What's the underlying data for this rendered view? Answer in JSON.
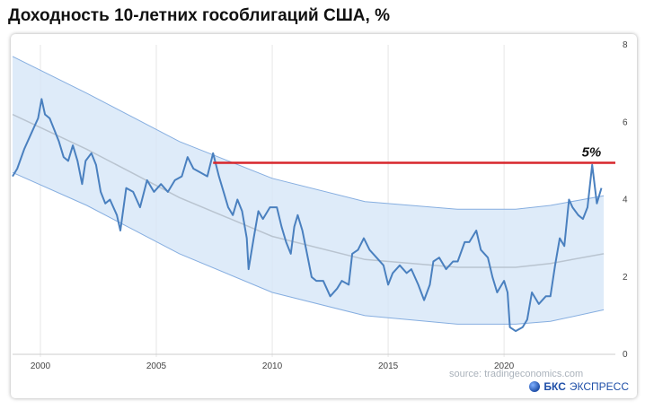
{
  "title": "Доходность 10-летних гособлигаций США, %",
  "source": "source: tradingeconomics.com",
  "brand": {
    "name": "БКС",
    "suffix": "ЭКСПРЕСС",
    "icon": "bcs-logo-icon"
  },
  "colors": {
    "line": "#4a80bf",
    "band_fill": "#d6e6f8",
    "band_edge": "#86aee0",
    "trend": "#b9c4d0",
    "threshold": "#d7262b",
    "grid": "#e6e6e6"
  },
  "chart_data": {
    "type": "line",
    "title": "Доходность 10-летних гособлигаций США, %",
    "xlabel": "",
    "ylabel": "",
    "xlim": [
      1998.8,
      2024.8
    ],
    "ylim": [
      0,
      8
    ],
    "x_ticks": [
      "2000",
      "2005",
      "2010",
      "2015",
      "2020"
    ],
    "y_ticks": [
      "0",
      "2",
      "4",
      "6",
      "8"
    ],
    "y_axis_side": "right",
    "grid": "vertical",
    "series": [
      {
        "x": [
          1998.8,
          1999.0,
          1999.3,
          1999.6,
          1999.9,
          2000.05,
          2000.2,
          2000.4,
          2000.6,
          2000.8,
          2001.0,
          2001.2,
          2001.4,
          2001.6,
          2001.8,
          2001.95,
          2002.2,
          2002.4,
          2002.6,
          2002.8,
          2003.0,
          2003.3,
          2003.45,
          2003.7,
          2004.0,
          2004.3,
          2004.6,
          2004.9,
          2005.2,
          2005.5,
          2005.8,
          2006.1,
          2006.35,
          2006.6,
          2006.9,
          2007.2,
          2007.45,
          2007.7,
          2007.9,
          2008.1,
          2008.3,
          2008.5,
          2008.7,
          2008.9,
          2008.98,
          2009.2,
          2009.4,
          2009.6,
          2009.9,
          2010.2,
          2010.4,
          2010.6,
          2010.8,
          2010.95,
          2011.1,
          2011.3,
          2011.5,
          2011.7,
          2011.9,
          2012.2,
          2012.5,
          2012.8,
          2013.0,
          2013.3,
          2013.45,
          2013.7,
          2013.95,
          2014.2,
          2014.5,
          2014.8,
          2015.0,
          2015.2,
          2015.5,
          2015.8,
          2016.0,
          2016.3,
          2016.55,
          2016.8,
          2016.95,
          2017.2,
          2017.5,
          2017.8,
          2018.0,
          2018.3,
          2018.5,
          2018.8,
          2019.0,
          2019.3,
          2019.5,
          2019.7,
          2019.9,
          2020.0,
          2020.15,
          2020.25,
          2020.5,
          2020.8,
          2021.0,
          2021.2,
          2021.5,
          2021.8,
          2022.0,
          2022.2,
          2022.4,
          2022.6,
          2022.8,
          2022.95,
          2023.2,
          2023.4,
          2023.6,
          2023.8,
          2024.0,
          2024.2
        ],
        "values": [
          4.6,
          4.8,
          5.3,
          5.7,
          6.1,
          6.6,
          6.2,
          6.1,
          5.8,
          5.5,
          5.1,
          5.0,
          5.4,
          5.0,
          4.4,
          5.0,
          5.2,
          4.9,
          4.2,
          3.9,
          4.0,
          3.6,
          3.2,
          4.3,
          4.2,
          3.8,
          4.5,
          4.2,
          4.4,
          4.2,
          4.5,
          4.6,
          5.1,
          4.8,
          4.7,
          4.6,
          5.2,
          4.6,
          4.2,
          3.8,
          3.6,
          4.0,
          3.7,
          3.0,
          2.2,
          3.0,
          3.7,
          3.5,
          3.8,
          3.8,
          3.3,
          2.9,
          2.6,
          3.3,
          3.6,
          3.2,
          2.6,
          2.0,
          1.9,
          1.9,
          1.5,
          1.7,
          1.9,
          1.8,
          2.6,
          2.7,
          3.0,
          2.7,
          2.5,
          2.3,
          1.8,
          2.1,
          2.3,
          2.1,
          2.2,
          1.8,
          1.4,
          1.8,
          2.4,
          2.5,
          2.2,
          2.4,
          2.4,
          2.9,
          2.9,
          3.2,
          2.7,
          2.5,
          2.0,
          1.6,
          1.8,
          1.9,
          1.6,
          0.7,
          0.6,
          0.7,
          0.9,
          1.6,
          1.3,
          1.5,
          1.5,
          2.3,
          3.0,
          2.8,
          4.0,
          3.8,
          3.6,
          3.5,
          3.8,
          4.9,
          3.9,
          4.3
        ]
      }
    ],
    "trend": {
      "x": [
        1998.8,
        2002.0,
        2006.0,
        2010.0,
        2014.0,
        2018.0,
        2020.5,
        2022.0,
        2024.3
      ],
      "values": [
        6.2,
        5.3,
        4.05,
        3.05,
        2.45,
        2.25,
        2.25,
        2.35,
        2.6
      ]
    },
    "band": {
      "x": [
        1998.8,
        2002.0,
        2006.0,
        2010.0,
        2014.0,
        2018.0,
        2020.5,
        2022.0,
        2024.3
      ],
      "upper": [
        7.7,
        6.75,
        5.5,
        4.55,
        3.95,
        3.75,
        3.75,
        3.85,
        4.1
      ],
      "lower": [
        4.7,
        3.85,
        2.6,
        1.6,
        1.0,
        0.78,
        0.78,
        0.85,
        1.15
      ]
    },
    "threshold": {
      "x_start": 2007.45,
      "x_end": 2024.8,
      "value": 4.95,
      "label": "5%"
    }
  }
}
